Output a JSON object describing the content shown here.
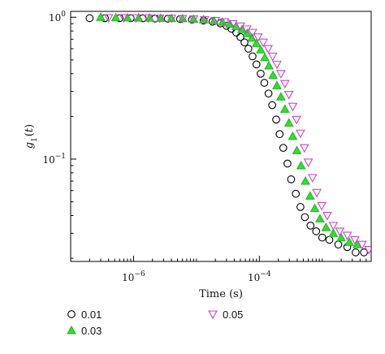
{
  "chart_data": {
    "type": "scatter",
    "xlabel": "Time (s)",
    "ylabel": "g1(t)",
    "xscale": "log",
    "yscale": "log",
    "xlim": [
      1e-07,
      0.006
    ],
    "ylim": [
      0.019,
      1.1
    ],
    "x_ticks": [
      {
        "label_base": "10",
        "label_exp": "−6",
        "value": 1e-06
      },
      {
        "label_base": "10",
        "label_exp": "−4",
        "value": 0.0001
      }
    ],
    "y_ticks": [
      {
        "label_base": "10",
        "label_exp": "0",
        "value": 1
      },
      {
        "label_base": "10",
        "label_exp": "−1",
        "value": 0.1
      }
    ],
    "legend_placement": "bottom",
    "series": [
      {
        "name": "0.01",
        "marker": "circle",
        "color": "#000000",
        "fill": "none",
        "points": [
          [
            2e-07,
            0.985
          ],
          [
            3.5e-07,
            0.985
          ],
          [
            6e-07,
            0.985
          ],
          [
            9e-07,
            0.984
          ],
          [
            1.4e-06,
            0.982
          ],
          [
            2.2e-06,
            0.98
          ],
          [
            3.5e-06,
            0.977
          ],
          [
            5.5e-06,
            0.971
          ],
          [
            8.5e-06,
            0.962
          ],
          [
            1.3e-05,
            0.948
          ],
          [
            1.8e-05,
            0.93
          ],
          [
            2.4e-05,
            0.905
          ],
          [
            3e-05,
            0.87
          ],
          [
            3.6e-05,
            0.83
          ],
          [
            4.3e-05,
            0.78
          ],
          [
            5e-05,
            0.725
          ],
          [
            5.8e-05,
            0.665
          ],
          [
            6.7e-05,
            0.6
          ],
          [
            7.8e-05,
            0.53
          ],
          [
            9e-05,
            0.465
          ],
          [
            0.000105,
            0.4
          ],
          [
            0.00012,
            0.345
          ],
          [
            0.00014,
            0.29
          ],
          [
            0.00016,
            0.24
          ],
          [
            0.000185,
            0.19
          ],
          [
            0.00021,
            0.15
          ],
          [
            0.00024,
            0.12
          ],
          [
            0.00028,
            0.093
          ],
          [
            0.00032,
            0.072
          ],
          [
            0.00038,
            0.057
          ],
          [
            0.00045,
            0.046
          ],
          [
            0.00053,
            0.039
          ],
          [
            0.00065,
            0.034
          ],
          [
            0.0008,
            0.031
          ],
          [
            0.001,
            0.028
          ],
          [
            0.0013,
            0.027
          ],
          [
            0.0018,
            0.025
          ],
          [
            0.0025,
            0.024
          ],
          [
            0.0034,
            0.022
          ],
          [
            0.0046,
            0.022
          ]
        ]
      },
      {
        "name": "0.03",
        "marker": "triangle-up",
        "color": "#22bb22",
        "fill": "#33dd33",
        "points": [
          [
            3e-07,
            1.0
          ],
          [
            5.2e-07,
            0.995
          ],
          [
            8e-07,
            0.992
          ],
          [
            1.2e-06,
            0.99
          ],
          [
            1.8e-06,
            0.988
          ],
          [
            2.7e-06,
            0.985
          ],
          [
            4e-06,
            0.982
          ],
          [
            6e-06,
            0.978
          ],
          [
            9e-06,
            0.97
          ],
          [
            1.3e-05,
            0.96
          ],
          [
            1.9e-05,
            0.945
          ],
          [
            2.6e-05,
            0.925
          ],
          [
            3.4e-05,
            0.895
          ],
          [
            4.3e-05,
            0.86
          ],
          [
            5.3e-05,
            0.82
          ],
          [
            6.4e-05,
            0.77
          ],
          [
            7.6e-05,
            0.715
          ],
          [
            9e-05,
            0.655
          ],
          [
            0.000105,
            0.59
          ],
          [
            0.000122,
            0.52
          ],
          [
            0.000142,
            0.455
          ],
          [
            0.000165,
            0.39
          ],
          [
            0.00019,
            0.33
          ],
          [
            0.00022,
            0.275
          ],
          [
            0.000255,
            0.225
          ],
          [
            0.000295,
            0.18
          ],
          [
            0.00034,
            0.145
          ],
          [
            0.000395,
            0.115
          ],
          [
            0.00046,
            0.09
          ],
          [
            0.00054,
            0.07
          ],
          [
            0.00064,
            0.055
          ],
          [
            0.00076,
            0.045
          ],
          [
            0.00092,
            0.038
          ],
          [
            0.00115,
            0.033
          ],
          [
            0.0015,
            0.03
          ],
          [
            0.002,
            0.028
          ],
          [
            0.0027,
            0.026
          ],
          [
            0.0036,
            0.025
          ]
        ]
      },
      {
        "name": "0.05",
        "marker": "triangle-down",
        "color": "#cc44cc",
        "fill": "none",
        "points": [
          [
            4e-07,
            0.99
          ],
          [
            7e-07,
            0.99
          ],
          [
            1.1e-06,
            0.988
          ],
          [
            1.7e-06,
            0.986
          ],
          [
            2.6e-06,
            0.984
          ],
          [
            4e-06,
            0.981
          ],
          [
            6e-06,
            0.977
          ],
          [
            9e-06,
            0.97
          ],
          [
            1.35e-05,
            0.96
          ],
          [
            2e-05,
            0.945
          ],
          [
            2.8e-05,
            0.925
          ],
          [
            3.8e-05,
            0.898
          ],
          [
            5e-05,
            0.865
          ],
          [
            6.3e-05,
            0.825
          ],
          [
            7.8e-05,
            0.78
          ],
          [
            9.5e-05,
            0.725
          ],
          [
            0.000115,
            0.665
          ],
          [
            0.000138,
            0.6
          ],
          [
            0.000163,
            0.53
          ],
          [
            0.00019,
            0.465
          ],
          [
            0.00022,
            0.4
          ],
          [
            0.000255,
            0.34
          ],
          [
            0.000295,
            0.285
          ],
          [
            0.00034,
            0.235
          ],
          [
            0.00039,
            0.19
          ],
          [
            0.00045,
            0.152
          ],
          [
            0.00052,
            0.12
          ],
          [
            0.0006,
            0.095
          ],
          [
            0.0007,
            0.074
          ],
          [
            0.00082,
            0.058
          ],
          [
            0.00098,
            0.047
          ],
          [
            0.0012,
            0.04
          ],
          [
            0.0015,
            0.034
          ],
          [
            0.0019,
            0.031
          ],
          [
            0.0025,
            0.029
          ],
          [
            0.0033,
            0.027
          ],
          [
            0.0043,
            0.025
          ],
          [
            0.0055,
            0.023
          ]
        ]
      }
    ]
  }
}
